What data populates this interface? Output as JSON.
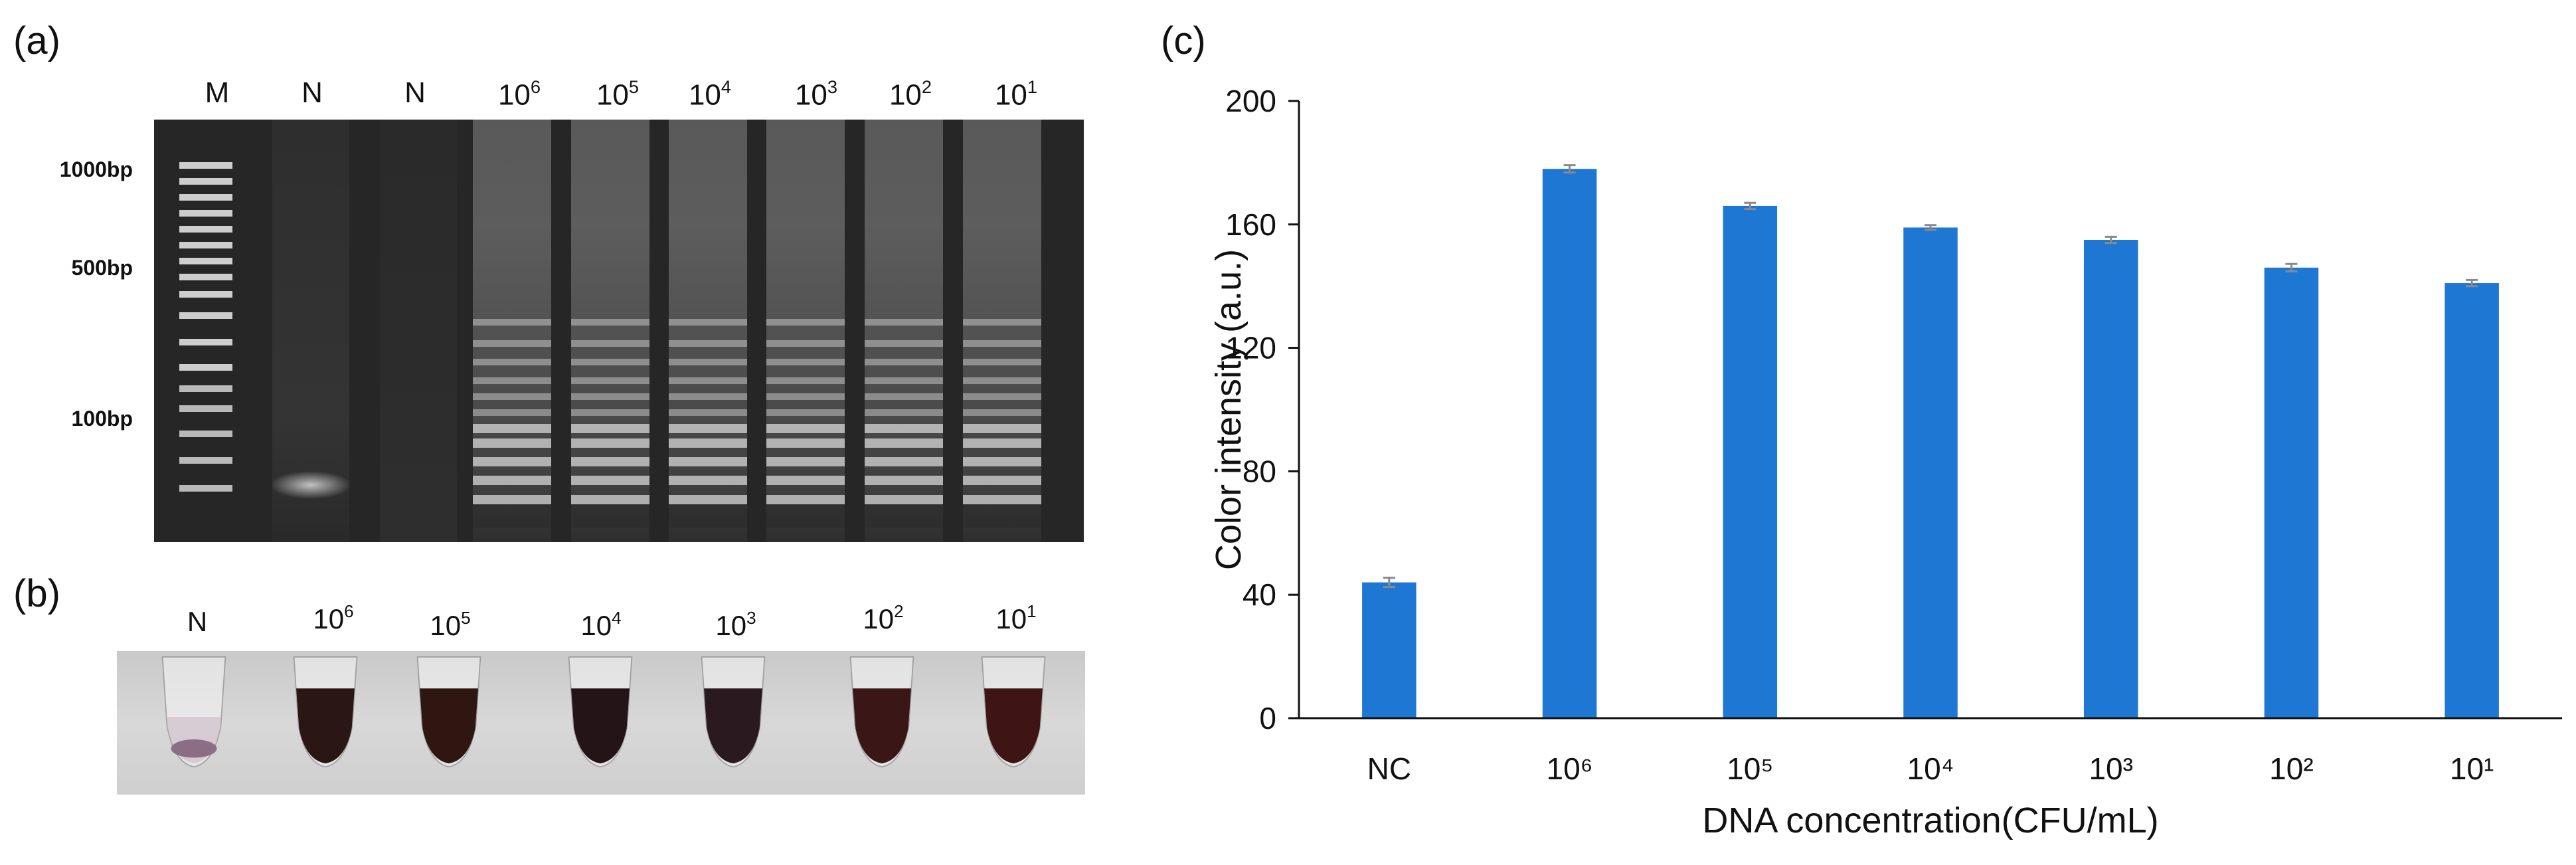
{
  "panels": {
    "a": {
      "letter": "(a)",
      "lanes": [
        {
          "base": "M",
          "exp": ""
        },
        {
          "base": "N",
          "exp": ""
        },
        {
          "base": "N",
          "exp": ""
        },
        {
          "base": "10",
          "exp": "6"
        },
        {
          "base": "10",
          "exp": "5"
        },
        {
          "base": "10",
          "exp": "4"
        },
        {
          "base": "10",
          "exp": "3"
        },
        {
          "base": "10",
          "exp": "2"
        },
        {
          "base": "10",
          "exp": "1"
        }
      ],
      "ladder_labels": [
        "1000bp",
        "500bp",
        "100bp"
      ]
    },
    "b": {
      "letter": "(b)",
      "tubes": [
        {
          "base": "N",
          "exp": "",
          "color": "#8c6e84"
        },
        {
          "base": "10",
          "exp": "6",
          "color": "#2a1612"
        },
        {
          "base": "10",
          "exp": "5",
          "color": "#2f1610"
        },
        {
          "base": "10",
          "exp": "4",
          "color": "#241418"
        },
        {
          "base": "10",
          "exp": "3",
          "color": "#2a1a20"
        },
        {
          "base": "10",
          "exp": "2",
          "color": "#3a1616"
        },
        {
          "base": "10",
          "exp": "1",
          "color": "#3e1414"
        }
      ]
    },
    "c": {
      "letter": "(c)"
    }
  },
  "chart_data": {
    "type": "bar",
    "categories": [
      "NC",
      "10⁶",
      "10⁵",
      "10⁴",
      "10³",
      "10²",
      "10¹"
    ],
    "values": [
      44,
      178,
      166,
      159,
      155,
      146,
      141
    ],
    "errors": [
      1.5,
      1.2,
      1.0,
      0.8,
      1.0,
      1.2,
      1.0
    ],
    "xlabel": "DNA concentration(CFU/mL)",
    "ylabel": "Color intensity (a.u.)",
    "ylim": [
      0,
      200
    ],
    "yticks": [
      0,
      40,
      80,
      120,
      160,
      200
    ],
    "bar_color": "#1f77d4",
    "error_color": "#8a8a8a",
    "grid": false,
    "legend": "none"
  }
}
